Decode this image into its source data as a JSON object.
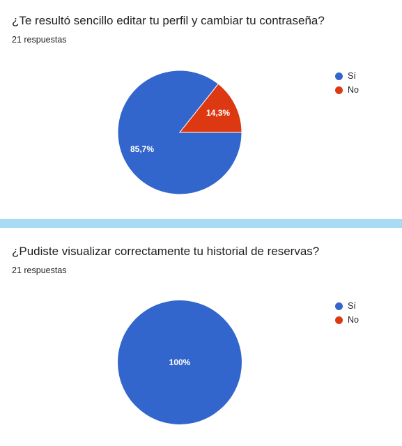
{
  "charts": [
    {
      "question": "¿Te resultó sencillo editar tu perfil y cambiar tu contraseña?",
      "responses": "21 respuestas",
      "legend": [
        {
          "label": "Sí",
          "color": "#3366cc"
        },
        {
          "label": "No",
          "color": "#dc3912"
        }
      ]
    },
    {
      "question": "¿Pudiste visualizar correctamente tu historial de reservas?",
      "responses": "21 respuestas",
      "legend": [
        {
          "label": "Sí",
          "color": "#3366cc"
        },
        {
          "label": "No",
          "color": "#dc3912"
        }
      ]
    }
  ],
  "chart_data": [
    {
      "type": "pie",
      "title": "¿Te resultó sencillo editar tu perfil y cambiar tu contraseña?",
      "categories": [
        "Sí",
        "No"
      ],
      "values": [
        85.7,
        14.3
      ],
      "labels": [
        "85,7%",
        "14,3%"
      ],
      "colors": [
        "#3366cc",
        "#dc3912"
      ],
      "legend": "right"
    },
    {
      "type": "pie",
      "title": "¿Pudiste visualizar correctamente tu historial de reservas?",
      "categories": [
        "Sí",
        "No"
      ],
      "values": [
        100,
        0
      ],
      "labels": [
        "100%",
        ""
      ],
      "colors": [
        "#3366cc",
        "#dc3912"
      ],
      "legend": "right"
    }
  ]
}
